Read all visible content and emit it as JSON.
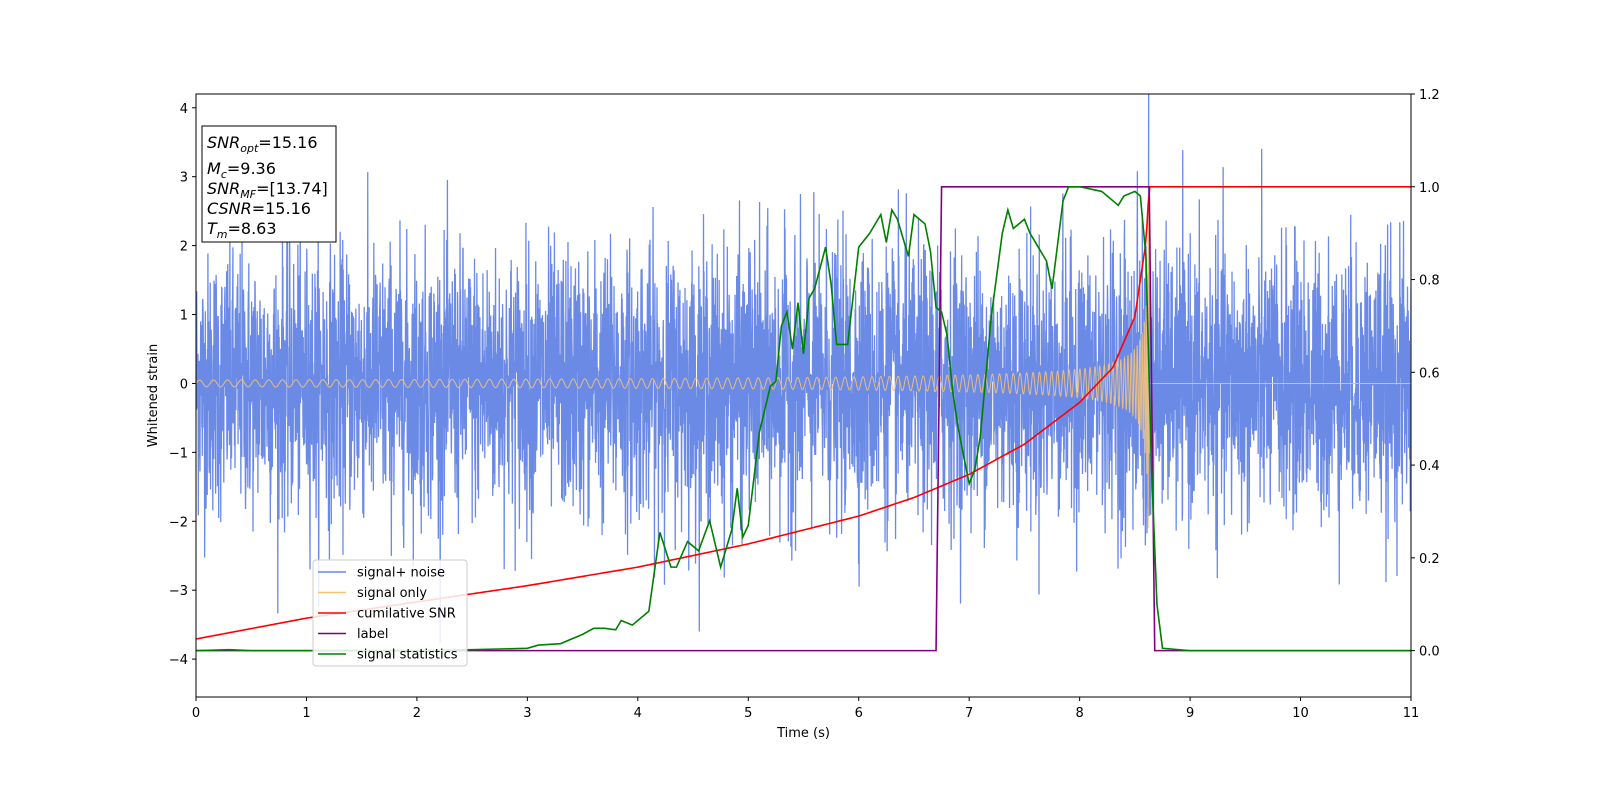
{
  "chart_data": {
    "type": "line",
    "xlabel": "Time (s)",
    "ylabel": "Whitened strain",
    "xlim": [
      0,
      11
    ],
    "ylim_left": [
      -4.55,
      4.2
    ],
    "ylim_right": [
      -0.1,
      1.2
    ],
    "x_ticks": [
      0,
      1,
      2,
      3,
      4,
      5,
      6,
      7,
      8,
      9,
      10,
      11
    ],
    "y_left_ticks": [
      -4,
      -3,
      -2,
      -1,
      0,
      1,
      2,
      3,
      4
    ],
    "y_right_ticks": [
      0.0,
      0.2,
      0.4,
      0.6,
      0.8,
      1.0,
      1.2
    ],
    "info_box": [
      {
        "base": "SNR",
        "sub": "opt",
        "value": "=15.16"
      },
      {
        "base": "M",
        "sub": "c",
        "value": "=9.36"
      },
      {
        "base": "SNR",
        "sub": "MF",
        "value": "=[13.74]"
      },
      {
        "base": "CSNR",
        "sub": "",
        "value": "=15.16"
      },
      {
        "base": "T",
        "sub": "m",
        "value": "=8.63"
      }
    ],
    "legend_position": "lower-left",
    "series": [
      {
        "name": "signal+ noise",
        "color": "#6a8ae6",
        "axis": "left",
        "description_values": "whitened noise with std ~1 plus injected signal, x from 0 to 11"
      },
      {
        "name": "signal only",
        "color": "#f5c27a",
        "axis": "left",
        "chirp": {
          "t_start": 0,
          "t_merge": 8.63,
          "amp_start": 0.05,
          "amp_peak": 2.9
        }
      },
      {
        "name": "cumilative SNR",
        "color": "#ff0000",
        "axis": "right",
        "points": [
          [
            0,
            0.025
          ],
          [
            1,
            0.07
          ],
          [
            2,
            0.105
          ],
          [
            3,
            0.14
          ],
          [
            4,
            0.18
          ],
          [
            5,
            0.23
          ],
          [
            6,
            0.29
          ],
          [
            6.5,
            0.33
          ],
          [
            7,
            0.38
          ],
          [
            7.5,
            0.445
          ],
          [
            8,
            0.535
          ],
          [
            8.3,
            0.61
          ],
          [
            8.5,
            0.72
          ],
          [
            8.6,
            0.88
          ],
          [
            8.63,
            1.0
          ],
          [
            11,
            1.0
          ]
        ]
      },
      {
        "name": "label",
        "color": "#800080",
        "axis": "right",
        "points": [
          [
            0,
            0
          ],
          [
            6.7,
            0
          ],
          [
            6.75,
            1.0
          ],
          [
            8.63,
            1.0
          ],
          [
            8.68,
            0
          ],
          [
            11,
            0
          ]
        ]
      },
      {
        "name": "signal statistics",
        "color": "#008000",
        "axis": "right",
        "points": [
          [
            0,
            0
          ],
          [
            0.3,
            0.002
          ],
          [
            0.5,
            0.0
          ],
          [
            1,
            0.0
          ],
          [
            2,
            0.0
          ],
          [
            2.5,
            0.002
          ],
          [
            3,
            0.005
          ],
          [
            3.1,
            0.012
          ],
          [
            3.3,
            0.015
          ],
          [
            3.5,
            0.035
          ],
          [
            3.6,
            0.048
          ],
          [
            3.7,
            0.048
          ],
          [
            3.8,
            0.045
          ],
          [
            3.85,
            0.065
          ],
          [
            3.95,
            0.055
          ],
          [
            4.0,
            0.065
          ],
          [
            4.1,
            0.085
          ],
          [
            4.2,
            0.255
          ],
          [
            4.3,
            0.18
          ],
          [
            4.35,
            0.18
          ],
          [
            4.45,
            0.235
          ],
          [
            4.55,
            0.215
          ],
          [
            4.65,
            0.28
          ],
          [
            4.75,
            0.18
          ],
          [
            4.85,
            0.26
          ],
          [
            4.9,
            0.35
          ],
          [
            4.95,
            0.245
          ],
          [
            5.0,
            0.27
          ],
          [
            5.1,
            0.47
          ],
          [
            5.2,
            0.57
          ],
          [
            5.25,
            0.58
          ],
          [
            5.3,
            0.7
          ],
          [
            5.35,
            0.73
          ],
          [
            5.4,
            0.65
          ],
          [
            5.45,
            0.75
          ],
          [
            5.5,
            0.64
          ],
          [
            5.55,
            0.76
          ],
          [
            5.6,
            0.78
          ],
          [
            5.7,
            0.87
          ],
          [
            5.75,
            0.79
          ],
          [
            5.8,
            0.66
          ],
          [
            5.9,
            0.66
          ],
          [
            6.0,
            0.87
          ],
          [
            6.1,
            0.9
          ],
          [
            6.15,
            0.92
          ],
          [
            6.2,
            0.94
          ],
          [
            6.25,
            0.88
          ],
          [
            6.3,
            0.95
          ],
          [
            6.35,
            0.93
          ],
          [
            6.45,
            0.85
          ],
          [
            6.5,
            0.94
          ],
          [
            6.6,
            0.92
          ],
          [
            6.65,
            0.86
          ],
          [
            6.7,
            0.74
          ],
          [
            6.75,
            0.73
          ],
          [
            6.8,
            0.68
          ],
          [
            6.85,
            0.56
          ],
          [
            6.9,
            0.48
          ],
          [
            7.0,
            0.36
          ],
          [
            7.05,
            0.39
          ],
          [
            7.1,
            0.46
          ],
          [
            7.2,
            0.72
          ],
          [
            7.3,
            0.9
          ],
          [
            7.35,
            0.95
          ],
          [
            7.4,
            0.91
          ],
          [
            7.5,
            0.93
          ],
          [
            7.55,
            0.9
          ],
          [
            7.6,
            0.88
          ],
          [
            7.7,
            0.84
          ],
          [
            7.75,
            0.78
          ],
          [
            7.85,
            0.97
          ],
          [
            7.9,
            1.0
          ],
          [
            8.0,
            1.0
          ],
          [
            8.2,
            0.99
          ],
          [
            8.35,
            0.96
          ],
          [
            8.4,
            0.98
          ],
          [
            8.5,
            0.99
          ],
          [
            8.55,
            0.98
          ],
          [
            8.6,
            0.85
          ],
          [
            8.65,
            0.4
          ],
          [
            8.7,
            0.1
          ],
          [
            8.75,
            0.005
          ],
          [
            9,
            0.0
          ],
          [
            11,
            0.0
          ]
        ]
      }
    ]
  }
}
